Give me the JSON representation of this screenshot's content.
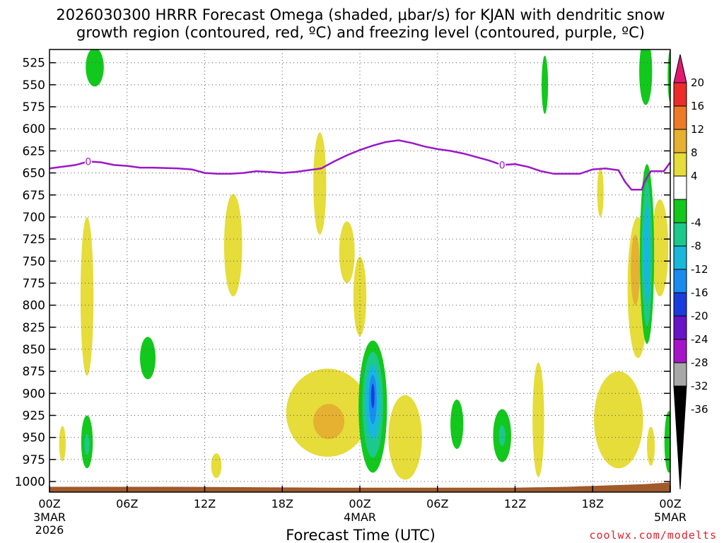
{
  "chart_data": {
    "type": "time-height contour",
    "title": "2026030300 HRRR Forecast Omega (shaded, μbar/s) for KJAN with dendritic snow",
    "title_line2": "growth region (contoured, red, ºC) and freezing level (contoured, purple, ºC)",
    "xlabel": "Forecast Time (UTC)",
    "xlim": [
      0,
      48
    ],
    "ylim": [
      1012,
      510
    ],
    "x_ticks": [
      {
        "x": 0,
        "label": "00Z",
        "sub1": "3MAR",
        "sub2": "2026"
      },
      {
        "x": 6,
        "label": "06Z"
      },
      {
        "x": 12,
        "label": "12Z"
      },
      {
        "x": 18,
        "label": "18Z"
      },
      {
        "x": 24,
        "label": "00Z",
        "sub1": "4MAR"
      },
      {
        "x": 30,
        "label": "06Z"
      },
      {
        "x": 36,
        "label": "12Z"
      },
      {
        "x": 42,
        "label": "18Z"
      },
      {
        "x": 48,
        "label": "00Z",
        "sub1": "5MAR"
      }
    ],
    "y_ticks": [
      {
        "p": 525,
        "label": "525"
      },
      {
        "p": 550,
        "label": "550"
      },
      {
        "p": 575,
        "label": "575"
      },
      {
        "p": 600,
        "label": "600"
      },
      {
        "p": 625,
        "label": "625"
      },
      {
        "p": 650,
        "label": "650"
      },
      {
        "p": 675,
        "label": "675"
      },
      {
        "p": 700,
        "label": "700"
      },
      {
        "p": 725,
        "label": "725"
      },
      {
        "p": 750,
        "label": "750"
      },
      {
        "p": 775,
        "label": "775"
      },
      {
        "p": 800,
        "label": "800"
      },
      {
        "p": 825,
        "label": "825"
      },
      {
        "p": 850,
        "label": "850"
      },
      {
        "p": 875,
        "label": "875"
      },
      {
        "p": 900,
        "label": "900"
      },
      {
        "p": 925,
        "label": "925"
      },
      {
        "p": 950,
        "label": "950"
      },
      {
        "p": 975,
        "label": "975"
      },
      {
        "p": 1000,
        "label": "1000"
      }
    ],
    "colorbar": {
      "labels": [
        "20",
        "16",
        "12",
        "8",
        "4",
        "-4",
        "-8",
        "-12",
        "-16",
        "-20",
        "-24",
        "-28",
        "-32",
        "-36"
      ],
      "bins": [
        {
          "low": 16,
          "high": 20,
          "color": "#ee2b2b"
        },
        {
          "low": 12,
          "high": 16,
          "color": "#ee7a28"
        },
        {
          "low": 8,
          "high": 12,
          "color": "#e6b030"
        },
        {
          "low": 4,
          "high": 8,
          "color": "#e6dc3a"
        },
        {
          "low": -4,
          "high": 4,
          "color": "#ffffff"
        },
        {
          "low": -8,
          "high": -4,
          "color": "#12c81c"
        },
        {
          "low": -12,
          "high": -8,
          "color": "#1cc88c"
        },
        {
          "low": -16,
          "high": -12,
          "color": "#18b8dc"
        },
        {
          "low": -20,
          "high": -16,
          "color": "#1a8cf0"
        },
        {
          "low": -24,
          "high": -20,
          "color": "#1a3cdc"
        },
        {
          "low": -28,
          "high": -24,
          "color": "#6a14c8"
        },
        {
          "low": -32,
          "high": -28,
          "color": "#a614c8"
        },
        {
          "low": -36,
          "high": -32,
          "color": "#a8a8a8"
        }
      ],
      "top_cap_color": "#e01a6e",
      "bottom_cap_color": "#000000"
    },
    "freezing_level": {
      "label": "0",
      "color": "#9a18c8",
      "points": [
        [
          0,
          645
        ],
        [
          2,
          641
        ],
        [
          3,
          637
        ],
        [
          4,
          638
        ],
        [
          5,
          641
        ],
        [
          6,
          642
        ],
        [
          7,
          644
        ],
        [
          8,
          644
        ],
        [
          10,
          645
        ],
        [
          11,
          646
        ],
        [
          12,
          650
        ],
        [
          13,
          651
        ],
        [
          14,
          651
        ],
        [
          15,
          650
        ],
        [
          16,
          648
        ],
        [
          17,
          649
        ],
        [
          18,
          650
        ],
        [
          19,
          649
        ],
        [
          20,
          647
        ],
        [
          21,
          645
        ],
        [
          22,
          637
        ],
        [
          23,
          630
        ],
        [
          24,
          624
        ],
        [
          25,
          619
        ],
        [
          26,
          615
        ],
        [
          27,
          613
        ],
        [
          28,
          616
        ],
        [
          29,
          620
        ],
        [
          30,
          623
        ],
        [
          31,
          625
        ],
        [
          32,
          628
        ],
        [
          33,
          632
        ],
        [
          34,
          636
        ],
        [
          35,
          641
        ],
        [
          36,
          640
        ],
        [
          37,
          643
        ],
        [
          38,
          648
        ],
        [
          39,
          651
        ],
        [
          40,
          651
        ],
        [
          41,
          651
        ],
        [
          42,
          646
        ],
        [
          43,
          645
        ],
        [
          44,
          647
        ],
        [
          44.5,
          660
        ],
        [
          45,
          669
        ],
        [
          45.8,
          669
        ],
        [
          46,
          660
        ],
        [
          46.5,
          648
        ],
        [
          47.5,
          648
        ],
        [
          48,
          638
        ]
      ],
      "label_positions": [
        [
          3,
          637
        ],
        [
          35,
          641
        ]
      ]
    },
    "omega_features": [
      {
        "type": "ellipse",
        "x": 3.5,
        "p": 530,
        "rx": 0.7,
        "rp": 22,
        "value": -6
      },
      {
        "type": "ellipse",
        "x": 2.9,
        "p": 790,
        "rx": 0.5,
        "rp": 90,
        "value": 5
      },
      {
        "type": "ellipse",
        "x": 1.0,
        "p": 957,
        "rx": 0.25,
        "rp": 20,
        "value": 5
      },
      {
        "type": "ellipse",
        "x": 2.9,
        "p": 955,
        "rx": 0.45,
        "rp": 30,
        "value": -6
      },
      {
        "type": "ellipse",
        "x": 2.9,
        "p": 958,
        "rx": 0.2,
        "rp": 12,
        "value": -10
      },
      {
        "type": "ellipse",
        "x": 7.6,
        "p": 860,
        "rx": 0.6,
        "rp": 24,
        "value": -6
      },
      {
        "type": "ellipse",
        "x": 1.0,
        "p": 957,
        "rx": 0.25,
        "rp": 20,
        "value": 5
      },
      {
        "type": "ellipse",
        "x": 14.2,
        "p": 732,
        "rx": 0.7,
        "rp": 58,
        "value": 5
      },
      {
        "type": "ellipse",
        "x": 12.9,
        "p": 982,
        "rx": 0.4,
        "rp": 14,
        "value": 5
      },
      {
        "type": "ellipse",
        "x": 20.9,
        "p": 662,
        "rx": 0.5,
        "rp": 58,
        "value": 5
      },
      {
        "type": "ellipse",
        "x": 21.5,
        "p": 922,
        "rx": 3.2,
        "rp": 50,
        "value": 5
      },
      {
        "type": "ellipse",
        "x": 21.6,
        "p": 932,
        "rx": 1.2,
        "rp": 20,
        "value": 9
      },
      {
        "type": "ellipse",
        "x": 23.0,
        "p": 740,
        "rx": 0.6,
        "rp": 35,
        "value": 5
      },
      {
        "type": "ellipse",
        "x": 24.0,
        "p": 790,
        "rx": 0.5,
        "rp": 45,
        "value": 5
      },
      {
        "type": "ellipse",
        "x": 25.0,
        "p": 915,
        "rx": 1.1,
        "rp": 75,
        "value": -6
      },
      {
        "type": "ellipse",
        "x": 25.0,
        "p": 913,
        "rx": 0.8,
        "rp": 60,
        "value": -10
      },
      {
        "type": "ellipse",
        "x": 25.0,
        "p": 910,
        "rx": 0.55,
        "rp": 42,
        "value": -14
      },
      {
        "type": "ellipse",
        "x": 25.0,
        "p": 907,
        "rx": 0.3,
        "rp": 28,
        "value": -18
      },
      {
        "type": "ellipse",
        "x": 25.0,
        "p": 903,
        "rx": 0.13,
        "rp": 14,
        "value": -22
      },
      {
        "type": "ellipse",
        "x": 27.5,
        "p": 950,
        "rx": 1.3,
        "rp": 48,
        "value": 5
      },
      {
        "type": "ellipse",
        "x": 31.5,
        "p": 935,
        "rx": 0.5,
        "rp": 28,
        "value": -6
      },
      {
        "type": "ellipse",
        "x": 35.0,
        "p": 948,
        "rx": 0.7,
        "rp": 30,
        "value": -6
      },
      {
        "type": "ellipse",
        "x": 35.0,
        "p": 948,
        "rx": 0.25,
        "rp": 12,
        "value": -10
      },
      {
        "type": "ellipse",
        "x": 37.8,
        "p": 930,
        "rx": 0.45,
        "rp": 65,
        "value": 5
      },
      {
        "type": "ellipse",
        "x": 38.3,
        "p": 550,
        "rx": 0.25,
        "rp": 33,
        "value": -6
      },
      {
        "type": "ellipse",
        "x": 42.6,
        "p": 672,
        "rx": 0.25,
        "rp": 28,
        "value": 5
      },
      {
        "type": "ellipse",
        "x": 44.0,
        "p": 930,
        "rx": 1.9,
        "rp": 55,
        "value": 5
      },
      {
        "type": "ellipse",
        "x": 45.5,
        "p": 780,
        "rx": 0.8,
        "rp": 80,
        "value": 5
      },
      {
        "type": "ellipse",
        "x": 45.3,
        "p": 760,
        "rx": 0.35,
        "rp": 40,
        "value": 9
      },
      {
        "type": "ellipse",
        "x": 46.5,
        "p": 960,
        "rx": 0.3,
        "rp": 22,
        "value": 5
      },
      {
        "type": "ellipse",
        "x": 47.2,
        "p": 735,
        "rx": 0.65,
        "rp": 55,
        "value": 5
      },
      {
        "type": "ellipse",
        "x": 46.1,
        "p": 535,
        "rx": 0.5,
        "rp": 38,
        "value": -6
      },
      {
        "type": "ellipse",
        "x": 46.2,
        "p": 742,
        "rx": 0.55,
        "rp": 102,
        "value": -6
      },
      {
        "type": "ellipse",
        "x": 46.2,
        "p": 742,
        "rx": 0.4,
        "rp": 82,
        "value": -10
      },
      {
        "type": "ellipse",
        "x": 46.2,
        "p": 742,
        "rx": 0.25,
        "rp": 55,
        "value": -14
      },
      {
        "type": "ellipse",
        "x": 47.9,
        "p": 955,
        "rx": 0.35,
        "rp": 35,
        "value": -6
      },
      {
        "type": "ellipse",
        "x": 48.0,
        "p": 540,
        "rx": 0.2,
        "rp": 30,
        "value": -6
      }
    ],
    "surface": {
      "color": "#a05a2c",
      "points": [
        [
          0,
          1006
        ],
        [
          10,
          1006
        ],
        [
          22,
          1007
        ],
        [
          36,
          1007
        ],
        [
          40,
          1006
        ],
        [
          44,
          1004
        ],
        [
          46,
          1003
        ],
        [
          48,
          1001
        ]
      ]
    }
  },
  "credit": "coolwx.com/modelts"
}
